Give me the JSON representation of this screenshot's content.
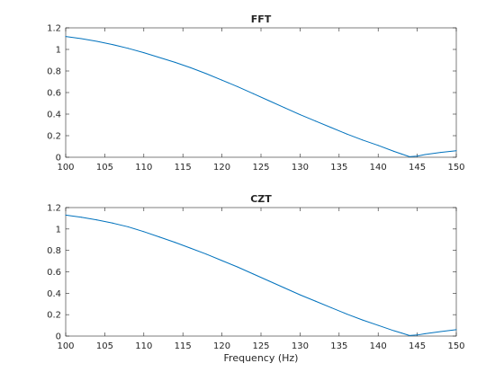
{
  "chart_data": [
    {
      "type": "line",
      "title": "FFT",
      "xlabel": "",
      "ylabel": "",
      "xlim": [
        100,
        150
      ],
      "ylim": [
        0,
        1.2
      ],
      "xticks": [
        "100",
        "105",
        "110",
        "115",
        "120",
        "125",
        "130",
        "135",
        "140",
        "145",
        "150"
      ],
      "yticks": [
        "0",
        "0.2",
        "0.4",
        "0.6",
        "0.8",
        "1",
        "1.2"
      ],
      "grid": false,
      "series": [
        {
          "color": "#0072bd",
          "x": [
            100,
            102,
            104,
            106,
            108,
            110,
            112,
            114,
            116,
            118,
            120,
            122,
            124,
            126,
            128,
            130,
            132,
            134,
            136,
            138,
            140,
            142,
            143,
            144,
            145,
            146,
            148,
            150
          ],
          "y": [
            1.12,
            1.1,
            1.075,
            1.045,
            1.01,
            0.97,
            0.925,
            0.88,
            0.83,
            0.775,
            0.715,
            0.655,
            0.59,
            0.525,
            0.46,
            0.395,
            0.335,
            0.275,
            0.215,
            0.16,
            0.11,
            0.055,
            0.03,
            0.005,
            0.01,
            0.025,
            0.045,
            0.06
          ]
        }
      ]
    },
    {
      "type": "line",
      "title": "CZT",
      "xlabel": "Frequency (Hz)",
      "ylabel": "",
      "xlim": [
        100,
        150
      ],
      "ylim": [
        0,
        1.2
      ],
      "xticks": [
        "100",
        "105",
        "110",
        "115",
        "120",
        "125",
        "130",
        "135",
        "140",
        "145",
        "150"
      ],
      "yticks": [
        "0",
        "0.2",
        "0.4",
        "0.6",
        "0.8",
        "1",
        "1.2"
      ],
      "grid": false,
      "series": [
        {
          "color": "#0072bd",
          "x": [
            100,
            102,
            104,
            106,
            108,
            110,
            112,
            114,
            116,
            118,
            120,
            122,
            124,
            126,
            128,
            130,
            132,
            134,
            136,
            138,
            140,
            142,
            143,
            144,
            145,
            146,
            148,
            150
          ],
          "y": [
            1.13,
            1.11,
            1.085,
            1.055,
            1.02,
            0.975,
            0.925,
            0.875,
            0.82,
            0.765,
            0.705,
            0.645,
            0.58,
            0.515,
            0.45,
            0.385,
            0.325,
            0.265,
            0.205,
            0.15,
            0.1,
            0.05,
            0.028,
            0.005,
            0.01,
            0.022,
            0.042,
            0.06
          ]
        }
      ]
    }
  ]
}
